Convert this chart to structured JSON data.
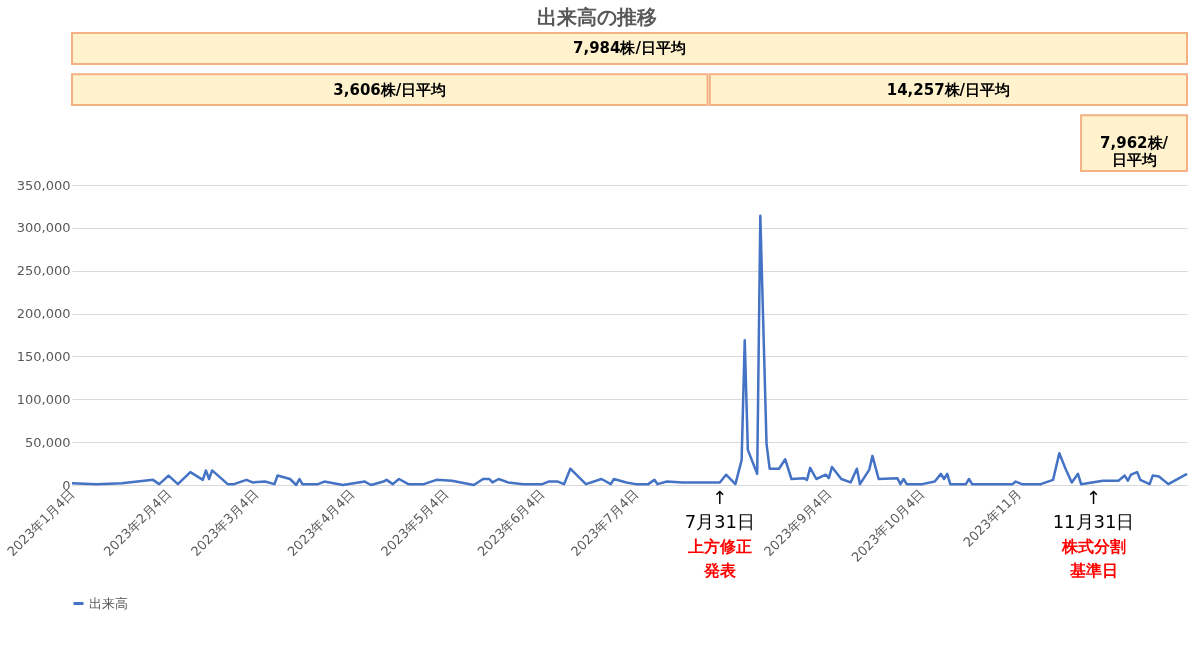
{
  "chart_data": {
    "type": "line",
    "title": "出来高の推移",
    "x": [
      "2023-01-04",
      "2023-01-12",
      "2023-01-20",
      "2023-01-30",
      "2023-02-01",
      "2023-02-04",
      "2023-02-07",
      "2023-02-11",
      "2023-02-15",
      "2023-02-16",
      "2023-02-17",
      "2023-02-18",
      "2023-02-23",
      "2023-02-25",
      "2023-03-01",
      "2023-03-03",
      "2023-03-07",
      "2023-03-10",
      "2023-03-11",
      "2023-03-15",
      "2023-03-17",
      "2023-03-18",
      "2023-03-19",
      "2023-03-24",
      "2023-03-26",
      "2023-04-01",
      "2023-04-08",
      "2023-04-10",
      "2023-04-14",
      "2023-04-15",
      "2023-04-17",
      "2023-04-19",
      "2023-04-22",
      "2023-04-27",
      "2023-05-01",
      "2023-05-06",
      "2023-05-13",
      "2023-05-16",
      "2023-05-18",
      "2023-05-19",
      "2023-05-21",
      "2023-05-24",
      "2023-05-29",
      "2023-06-04",
      "2023-06-06",
      "2023-06-09",
      "2023-06-11",
      "2023-06-13",
      "2023-06-18",
      "2023-06-23",
      "2023-06-26",
      "2023-06-27",
      "2023-07-01",
      "2023-07-04",
      "2023-07-08",
      "2023-07-10",
      "2023-07-11",
      "2023-07-14",
      "2023-07-19",
      "2023-07-25",
      "2023-07-31",
      "2023-08-02",
      "2023-08-05",
      "2023-08-07",
      "2023-08-08",
      "2023-08-09",
      "2023-08-12",
      "2023-08-13",
      "2023-08-15",
      "2023-08-16",
      "2023-08-19",
      "2023-08-21",
      "2023-08-23",
      "2023-08-27",
      "2023-08-28",
      "2023-08-29",
      "2023-08-31",
      "2023-09-03",
      "2023-09-04",
      "2023-09-05",
      "2023-09-08",
      "2023-09-11",
      "2023-09-13",
      "2023-09-14",
      "2023-09-17",
      "2023-09-18",
      "2023-09-20",
      "2023-09-26",
      "2023-09-27",
      "2023-09-28",
      "2023-09-29",
      "2023-10-04",
      "2023-10-08",
      "2023-10-10",
      "2023-10-11",
      "2023-10-12",
      "2023-10-13",
      "2023-10-18",
      "2023-10-19",
      "2023-10-20",
      "2023-10-26",
      "2023-11-02",
      "2023-11-03",
      "2023-11-05",
      "2023-11-11",
      "2023-11-15",
      "2023-11-17",
      "2023-11-19",
      "2023-11-21",
      "2023-11-23",
      "2023-11-24",
      "2023-12-01",
      "2023-12-06",
      "2023-12-08",
      "2023-12-09",
      "2023-12-10",
      "2023-12-12",
      "2023-12-13",
      "2023-12-16",
      "2023-12-17",
      "2023-12-19",
      "2023-12-22",
      "2023-12-28"
    ],
    "series": [
      {
        "name": "出来高",
        "color": "#4472c4",
        "values": [
          2000,
          1000,
          2000,
          6000,
          1000,
          11000,
          1000,
          15000,
          6000,
          17000,
          7000,
          17000,
          1000,
          1000,
          6000,
          3000,
          4000,
          1000,
          11000,
          7000,
          0,
          7000,
          1000,
          1000,
          4000,
          0,
          4000,
          0,
          4000,
          6000,
          1000,
          7000,
          1000,
          1000,
          6000,
          5000,
          0,
          7000,
          7000,
          3000,
          7000,
          3000,
          1000,
          1000,
          4000,
          4000,
          1000,
          19000,
          1000,
          7000,
          1000,
          7000,
          3000,
          1000,
          1000,
          6000,
          1000,
          4000,
          3000,
          3000,
          3000,
          12000,
          1000,
          29000,
          169000,
          41000,
          13000,
          314000,
          48000,
          19000,
          19000,
          30000,
          7000,
          8000,
          6000,
          20000,
          7000,
          12000,
          8000,
          21000,
          7000,
          3000,
          19000,
          1000,
          18000,
          34000,
          7000,
          8000,
          1000,
          7000,
          1000,
          1000,
          4000,
          13000,
          7000,
          13000,
          1000,
          1000,
          7000,
          1000,
          1000,
          1000,
          4000,
          1000,
          1000,
          6000,
          37000,
          19000,
          3000,
          13000,
          1000,
          5000,
          5000,
          11000,
          5000,
          12000,
          15000,
          6000,
          1000,
          11000,
          10000,
          1000,
          13000
        ]
      }
    ],
    "xlim": [
      "2023-01-04",
      "2023-12-28"
    ],
    "xticks": [
      {
        "value": "2023-01-04",
        "label": "2023年1月4日"
      },
      {
        "value": "2023-02-04",
        "label": "2023年2月4日"
      },
      {
        "value": "2023-03-04",
        "label": "2023年3月4日"
      },
      {
        "value": "2023-04-04",
        "label": "2023年4月4日"
      },
      {
        "value": "2023-05-04",
        "label": "2023年5月4日"
      },
      {
        "value": "2023-06-04",
        "label": "2023年6月4日"
      },
      {
        "value": "2023-07-04",
        "label": "2023年7月4日"
      },
      {
        "value": "2023-09-04",
        "label": "2023年9月4日"
      },
      {
        "value": "2023-10-04",
        "label": "2023年10月4日"
      },
      {
        "value": "2023-11-04",
        "label": "2023年11月"
      }
    ],
    "ylim": [
      0,
      350000
    ],
    "yticks": [
      0,
      {
        "value": 50000,
        "label": "50,000"
      },
      {
        "value": 100000,
        "label": "100,000"
      },
      {
        "value": 150000,
        "label": "150,000"
      },
      {
        "value": 200000,
        "label": "200,000"
      },
      {
        "value": 250000,
        "label": "250,000"
      },
      {
        "value": 300000,
        "label": "300,000"
      },
      {
        "value": 350000,
        "label": "350,000"
      }
    ],
    "grid": "y",
    "legend": "bottom",
    "line_style": "solid",
    "annotations": [
      "7,984株/日平均",
      "3,606株/日平均",
      "14,257株/日平均",
      "7,962株/日平均",
      {
        "text": "↑",
        "x": "2023-07-31",
        "y": 0
      },
      {
        "text": "7月31日",
        "x": "2023-07-31",
        "y": 0
      },
      "上方修正",
      "発表",
      {
        "text": "↑",
        "x": "2023-11-28",
        "y": 0
      },
      {
        "text": "11月31日",
        "x": "2023-11-28",
        "y": 0
      },
      "株式分割",
      "基準日"
    ]
  }
}
